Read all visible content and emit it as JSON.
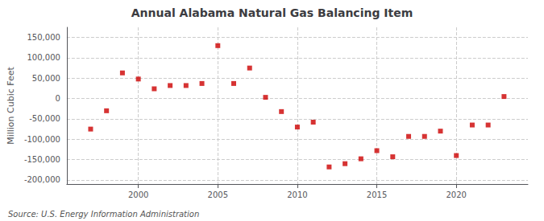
{
  "chart_data": {
    "type": "scatter",
    "title": "Annual Alabama Natural Gas Balancing Item",
    "ylabel": "Million Cubic Feet",
    "annotations": [
      "Source: U.S. Energy Information Administration"
    ],
    "x": [
      1997,
      1998,
      1999,
      2000,
      2001,
      2002,
      2003,
      2004,
      2005,
      2006,
      2007,
      2008,
      2009,
      2010,
      2011,
      2012,
      2013,
      2014,
      2015,
      2016,
      2017,
      2018,
      2019,
      2020,
      2021,
      2022,
      2023
    ],
    "values": [
      -75000,
      -30000,
      63000,
      48000,
      24000,
      32000,
      32000,
      37000,
      130000,
      37000,
      75000,
      3000,
      -32000,
      -70000,
      -58000,
      -168000,
      -160000,
      -148000,
      -128000,
      -143000,
      -93000,
      -93000,
      -80000,
      -140000,
      -65000,
      -65000,
      5000
    ],
    "color": "#cc0000",
    "marker": "square",
    "xlim": [
      1995.5,
      2024.5
    ],
    "xticks": [
      2000,
      2005,
      2010,
      2015,
      2020
    ],
    "ylim": [
      -210000,
      175000
    ],
    "yticks": [
      {
        "value": -200000,
        "label": "-200,000"
      },
      {
        "value": -150000,
        "label": "-150,000"
      },
      {
        "value": -100000,
        "label": "-100,000"
      },
      {
        "value": -50000,
        "label": "-50,000"
      },
      0,
      {
        "value": 50000,
        "label": "50,000"
      },
      {
        "value": 100000,
        "label": "100,000"
      },
      {
        "value": 150000,
        "label": "150,000"
      }
    ],
    "grid": true
  }
}
